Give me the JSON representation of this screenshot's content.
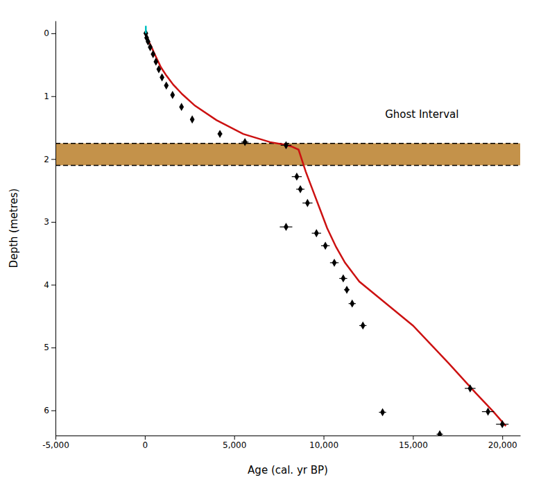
{
  "chart_data": {
    "type": "line",
    "xlabel": "Age (cal. yr BP)",
    "ylabel": "Depth (metres)",
    "xlim": [
      -5000,
      21000
    ],
    "ylim": [
      6.4,
      -0.2
    ],
    "xticks": [
      {
        "value": -5000,
        "label": "-5,000"
      },
      0,
      {
        "value": 5000,
        "label": "5,000"
      },
      {
        "value": 10000,
        "label": "10,000"
      },
      {
        "value": 15000,
        "label": "15,000"
      },
      {
        "value": 20000,
        "label": "20,000"
      }
    ],
    "yticks": [
      0,
      1,
      2,
      3,
      4,
      5,
      6
    ],
    "grid": false,
    "spans": [
      {
        "y": [
          1.75,
          2.1
        ],
        "color": "#c4924a",
        "line_style": "dashed"
      }
    ],
    "annotations": [
      {
        "text": "Ghost Interval",
        "x": 15500,
        "y": 1.3
      }
    ],
    "series": [
      {
        "type": "line",
        "color": "#cc1111",
        "x": [
          0,
          50,
          100,
          200,
          350,
          500,
          700,
          900,
          1200,
          1600,
          2100,
          2800,
          4000,
          5500,
          7000,
          7800,
          8200,
          8600,
          9000,
          9400,
          9800,
          10200,
          10700,
          11200,
          12000,
          13500,
          15000,
          17000,
          18500,
          19500,
          20200
        ],
        "values": [
          0.0,
          0.02,
          0.06,
          0.12,
          0.2,
          0.3,
          0.42,
          0.54,
          0.67,
          0.82,
          0.97,
          1.15,
          1.38,
          1.6,
          1.73,
          1.77,
          1.8,
          1.85,
          2.2,
          2.5,
          2.8,
          3.1,
          3.4,
          3.65,
          3.95,
          4.3,
          4.65,
          5.25,
          5.72,
          6.02,
          6.25
        ]
      },
      {
        "type": "scatter",
        "color": "#000000",
        "marker": "diamond",
        "x": [
          55,
          100,
          180,
          300,
          460,
          620,
          780,
          960,
          1200,
          1550,
          2050,
          2650,
          4200,
          5600,
          7900,
          8500,
          8700,
          9100,
          7900,
          9600,
          10100,
          10600,
          11100,
          11300,
          11600,
          12200,
          18200,
          19200,
          20000,
          13300,
          16500
        ],
        "values": [
          0.0,
          0.07,
          0.13,
          0.22,
          0.33,
          0.45,
          0.57,
          0.7,
          0.83,
          0.98,
          1.17,
          1.37,
          1.6,
          1.73,
          1.78,
          2.28,
          2.48,
          2.7,
          3.08,
          3.18,
          3.38,
          3.65,
          3.9,
          4.08,
          4.3,
          4.65,
          5.65,
          6.02,
          6.22,
          6.03,
          6.38
        ],
        "xerr": [
          100,
          80,
          60,
          55,
          55,
          60,
          65,
          65,
          75,
          80,
          100,
          110,
          130,
          200,
          300,
          280,
          230,
          280,
          350,
          260,
          240,
          240,
          220,
          160,
          200,
          200,
          300,
          340,
          350,
          200,
          180
        ]
      },
      {
        "type": "line",
        "color": "#00c0c0",
        "x": [
          55,
          55
        ],
        "values": [
          -0.12,
          0.0
        ]
      }
    ]
  }
}
